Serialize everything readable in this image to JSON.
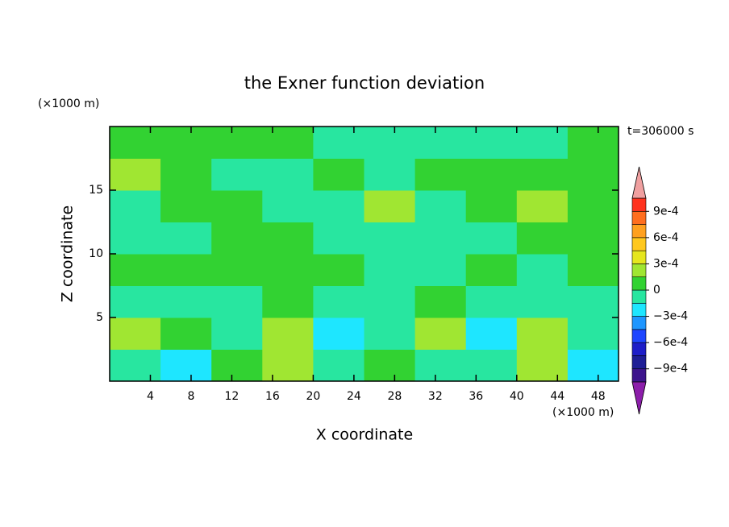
{
  "chart_data": {
    "type": "contour",
    "title": "the Exner function deviation",
    "y_unit": "(×1000 m)",
    "x_unit": "(×1000 m)",
    "annotation": "t=306000 s",
    "x_label": "X coordinate",
    "y_label": "Z coordinate",
    "xlim": [
      0,
      50
    ],
    "ylim": [
      0,
      20
    ],
    "xticks": [
      4,
      8,
      12,
      16,
      20,
      24,
      28,
      32,
      36,
      40,
      44,
      48
    ],
    "yticks": [
      5,
      10,
      15
    ],
    "x": [
      2.5,
      7.5,
      12.5,
      17.5,
      22.5,
      27.5,
      32.5,
      37.5,
      42.5,
      47.5
    ],
    "y": [
      1.25,
      3.75,
      6.25,
      8.75,
      11.25,
      13.75,
      16.25,
      18.75
    ],
    "z": [
      [
        -7e-05,
        -0.0002,
        7e-05,
        0.0002,
        -7e-05,
        7e-05,
        -7e-05,
        -7e-05,
        0.0002,
        -0.0002
      ],
      [
        0.0002,
        7e-05,
        -7e-05,
        0.0002,
        -0.0002,
        -7e-05,
        0.0002,
        -0.0002,
        0.0002,
        -7e-05
      ],
      [
        -7e-05,
        -7e-05,
        -7e-05,
        7e-05,
        -7e-05,
        -7e-05,
        7e-05,
        -7e-05,
        -7e-05,
        -7e-05
      ],
      [
        7e-05,
        7e-05,
        7e-05,
        7e-05,
        7e-05,
        -7e-05,
        -7e-05,
        7e-05,
        -7e-05,
        7e-05
      ],
      [
        -7e-05,
        -7e-05,
        7e-05,
        7e-05,
        -7e-05,
        -7e-05,
        -7e-05,
        -7e-05,
        7e-05,
        7e-05
      ],
      [
        -7e-05,
        7e-05,
        7e-05,
        -7e-05,
        -7e-05,
        0.0002,
        -7e-05,
        7e-05,
        0.0002,
        7e-05
      ],
      [
        0.0002,
        7e-05,
        -7e-05,
        -7e-05,
        7e-05,
        -7e-05,
        7e-05,
        7e-05,
        7e-05,
        7e-05
      ],
      [
        7e-05,
        7e-05,
        7e-05,
        7e-05,
        -7e-05,
        -7e-05,
        -7e-05,
        -7e-05,
        -7e-05,
        7e-05
      ]
    ],
    "levels": [
      -0.00105,
      -0.0009,
      -0.00075,
      -0.0006,
      -0.00045,
      -0.0003,
      -0.00015,
      0,
      0.00015,
      0.0003,
      0.00045,
      0.0006,
      0.00075,
      0.0009,
      0.00105
    ],
    "colors": [
      "#3c148c",
      "#1e1e96",
      "#1e1ec8",
      "#1e46ff",
      "#1e96ff",
      "#1ee6ff",
      "#28e6a0",
      "#32d232",
      "#a0e632",
      "#e6e61e",
      "#ffc81e",
      "#ffa01e",
      "#ff6e1e",
      "#ff321e"
    ],
    "extend_colors": [
      "#8c1eaa",
      "#f0a0a0"
    ],
    "colorbar_ticks": [
      {
        "value": 0.0009,
        "label": "9e-4"
      },
      {
        "value": 0.0006,
        "label": "6e-4"
      },
      {
        "value": 0.0003,
        "label": "3e-4"
      },
      0,
      {
        "value": -0.0003,
        "label": "−3e-4"
      },
      {
        "value": -0.0006,
        "label": "−6e-4"
      },
      {
        "value": -0.0009,
        "label": "−9e-4"
      }
    ]
  }
}
